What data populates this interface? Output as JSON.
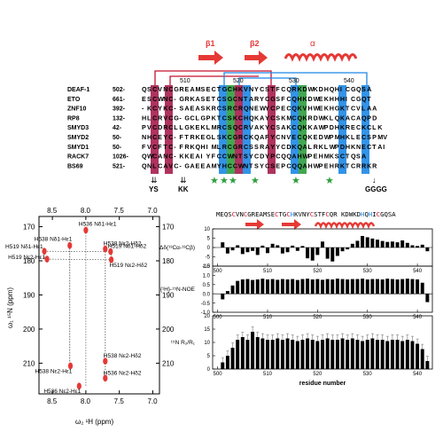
{
  "alignment": {
    "names": [
      "DEAF-1",
      "ETO",
      "ZNF10",
      "RP8",
      "SMYD3",
      "SMYD2",
      "SMYD1",
      "RACK7",
      "BS69"
    ],
    "starts": [
      "502-",
      "661-",
      "392-",
      "132-",
      "42-",
      "50-",
      "50-",
      "1026-",
      "521-"
    ],
    "rows": [
      "QSCVNCGREAMSECTGCHKVNYCSTFCQRKDWKDHQHICGQSA",
      "ESCWNC-GRKASETCSGCNTARYCGSFCQHKDWEKHHHICGQT",
      "-KCYKC-SAEASKRCSRCRQNEWYCPECQKVHWEKHGKTCVLAA",
      "HLCRVCG-GCLGPKTCSKCHQKAYCSKMCQKRDWKLQKACAQPD",
      "PVCDRCLLGKEKLMRCSQCRVAKYCSAKCQKKAWPDHKRECKCLK",
      "NHCEYC-FTRKEGLSKCGRCKQAFYCNVECQKEDWPMHKLECSPMV",
      "FVCFTC-FRKQHIMLRCGRCSSRAYYCDKQALRKLWPDHKNECTAI",
      "QWCANC-KKEAIYFCCWNTSYCDYPCQQAHWPEHMKSCTQSA",
      "QNLCAVC-GAEEAMYHCCWNTSYCSEPCQQAHWPEHRKTCRRKR"
    ],
    "ruler": [
      "510",
      "520",
      "530",
      "540"
    ],
    "structure_labels": [
      "β1",
      "β2",
      "α"
    ],
    "markers": [
      "YS",
      "KK",
      "GGGG"
    ]
  },
  "hsqc": {
    "xlabel": "ω₂ ¹H (ppm)",
    "ylabel": "ω₁ ¹⁵N (ppm)",
    "xticks": [
      "8.5",
      "8.0",
      "7.5",
      "7.0"
    ],
    "yticks": [
      "170",
      "180",
      "190",
      "200",
      "210"
    ],
    "peaks": [
      {
        "label": "H536 Nδ1-Hε1",
        "h": 8.0,
        "n": 171.0
      },
      {
        "label": "H538 Nδ1-Hε1",
        "h": 8.24,
        "n": 175.5
      },
      {
        "label": "H538 Nε2-Hδ2",
        "h": 7.71,
        "n": 176.5
      },
      {
        "label": "H519 Nδ1-Hε1",
        "h": 8.62,
        "n": 177.2
      },
      {
        "label": "H519 Nδ1-Hδ2",
        "h": 7.63,
        "n": 177.3
      },
      {
        "label": "H519 Nε2-Hε1",
        "h": 8.58,
        "n": 179.5
      },
      {
        "label": "H519 Nε2-Hδ2",
        "h": 7.62,
        "n": 179.7
      },
      {
        "label": "H538 Nε2-Hδ2",
        "h": 7.71,
        "n": 209.4
      },
      {
        "label": "H538 Nε2-Hε1",
        "h": 8.23,
        "n": 210.8
      },
      {
        "label": "H536 Nε2-Hδ2",
        "h": 7.71,
        "n": 214.4
      },
      {
        "label": "H536 Nε2-Hε1",
        "h": 8.1,
        "n": 216.7
      }
    ]
  },
  "chart_data": [
    {
      "type": "bar",
      "ylabel": "Δδ(¹³Cα-¹³Cβ)",
      "ylim": [
        -10,
        10
      ],
      "yticks": [
        "10",
        "5",
        "0",
        "-5",
        "-10"
      ],
      "x": [
        501,
        502,
        503,
        504,
        505,
        506,
        507,
        508,
        509,
        510,
        511,
        512,
        513,
        514,
        515,
        516,
        517,
        518,
        519,
        520,
        521,
        522,
        523,
        524,
        525,
        526,
        527,
        528,
        529,
        530,
        531,
        532,
        533,
        534,
        535,
        536,
        537,
        538,
        539,
        540,
        541,
        542
      ],
      "values": [
        2.8,
        -3.2,
        -1.5,
        1.2,
        -3.5,
        -2.5,
        -1.8,
        -4.0,
        1.0,
        -3.0,
        2.0,
        1.2,
        -3.2,
        -2.5,
        1.0,
        -1.8,
        0.8,
        -5.8,
        -7.0,
        -4.0,
        3.2,
        -6.0,
        -7.5,
        -4.5,
        -2.0,
        -1.0,
        2.0,
        3.6,
        6.2,
        5.5,
        4.8,
        4.2,
        3.5,
        3.0,
        3.2,
        2.8,
        3.8,
        2.5,
        1.2,
        0.8,
        1.5,
        -2.0
      ]
    },
    {
      "type": "bar",
      "ylabel": "{¹H}-¹⁵N-NOE",
      "ylim": [
        -1.0,
        1.5
      ],
      "yticks": [
        "1.5",
        "1.0",
        "0.5",
        "0.0",
        "-0.5",
        "-1.0"
      ],
      "x": [
        501,
        502,
        503,
        504,
        505,
        506,
        507,
        508,
        509,
        510,
        511,
        512,
        513,
        514,
        515,
        516,
        517,
        518,
        519,
        520,
        521,
        522,
        523,
        524,
        525,
        526,
        527,
        528,
        529,
        530,
        531,
        532,
        533,
        534,
        535,
        536,
        537,
        538,
        539,
        540,
        541,
        542
      ],
      "values": [
        -0.3,
        0.15,
        0.45,
        0.7,
        0.78,
        0.8,
        0.75,
        0.78,
        0.82,
        0.78,
        0.8,
        0.76,
        0.8,
        0.78,
        0.8,
        0.75,
        0.8,
        0.82,
        0.78,
        0.8,
        0.76,
        0.8,
        0.78,
        0.82,
        0.8,
        0.78,
        0.8,
        0.8,
        0.82,
        0.78,
        0.8,
        0.8,
        0.78,
        0.82,
        0.8,
        0.78,
        0.8,
        0.82,
        0.8,
        0.78,
        0.6,
        -0.45
      ]
    },
    {
      "type": "bar",
      "ylabel": "¹⁵N R₂/R₁",
      "ylim": [
        0,
        20
      ],
      "yticks": [
        "20",
        "15",
        "10",
        "5",
        "0"
      ],
      "xlabel": "residue number",
      "xticks": [
        "500",
        "510",
        "520",
        "530",
        "540"
      ],
      "x": [
        501,
        502,
        503,
        504,
        505,
        506,
        507,
        508,
        509,
        510,
        511,
        512,
        513,
        514,
        515,
        516,
        517,
        518,
        519,
        520,
        521,
        522,
        523,
        524,
        525,
        526,
        527,
        528,
        529,
        530,
        531,
        532,
        533,
        534,
        535,
        536,
        537,
        538,
        539,
        540,
        541,
        542
      ],
      "values": [
        2.5,
        5.0,
        8.0,
        11.0,
        12.0,
        11.0,
        14.0,
        12.0,
        11.5,
        11.0,
        11.0,
        11.5,
        11.0,
        11.5,
        11.0,
        10.5,
        11.0,
        11.5,
        11.0,
        10.5,
        11.0,
        11.5,
        11.0,
        11.0,
        11.5,
        11.0,
        11.5,
        11.0,
        10.5,
        11.0,
        11.5,
        11.0,
        11.0,
        10.5,
        11.0,
        11.0,
        10.5,
        11.0,
        10.5,
        9.5,
        7.5,
        3.0
      ]
    }
  ],
  "sequence": {
    "text": "MEQSCVNCGREAMSECTGCHKVNYCSTFCQR KDWKDHQHICGQSA",
    "structure_labels": [
      "",
      ""
    ]
  },
  "colors": {
    "cys": "#c8102e",
    "cys_box": "#a61e4d",
    "his_box": "#1e88e5",
    "green": "#2e9e3e",
    "arrow": "#e53935",
    "blue_line": "#1e88e5",
    "red_line": "#c8102e"
  }
}
